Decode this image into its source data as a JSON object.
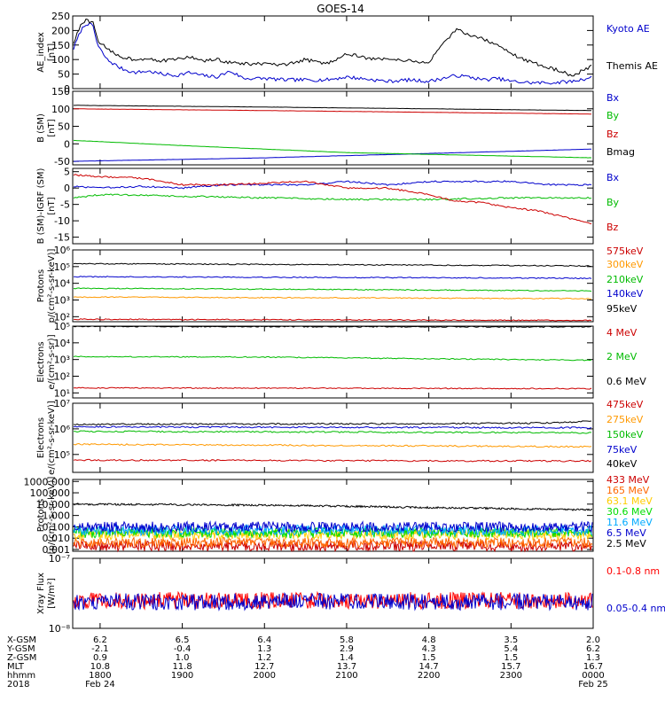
{
  "title": "GOES-14",
  "chart_data": {
    "type": "line",
    "title": "GOES-14",
    "x_range": [
      "2018-02-24 17:40",
      "2018-02-25 00:00"
    ],
    "panels": [
      {
        "id": "ae",
        "ylabel": "AE_index\n[nT]",
        "yscale": "linear",
        "ylim": [
          0,
          250
        ],
        "ticks": [
          0,
          50,
          100,
          150,
          200,
          250
        ],
        "tick_labels": [
          "0",
          "50",
          "100",
          "150",
          "200",
          "250"
        ],
        "series": [
          {
            "name": "Kyoto AE",
            "color": "#0000cc",
            "t": [
              "17:40",
              "17:46",
              "17:50",
              "17:55",
              "17:58",
              "18:05",
              "18:15",
              "18:25",
              "18:35",
              "18:45",
              "18:55",
              "19:05",
              "19:15",
              "19:25",
              "19:35",
              "19:45",
              "20:00",
              "20:15",
              "20:30",
              "20:45",
              "21:00",
              "21:10",
              "21:20",
              "21:30",
              "21:45",
              "22:00",
              "22:10",
              "22:20",
              "22:30",
              "22:40",
              "22:50",
              "23:00",
              "23:15",
              "23:30",
              "23:45",
              "00:00"
            ],
            "v": [
              130,
              200,
              225,
              215,
              150,
              100,
              70,
              55,
              60,
              50,
              45,
              55,
              45,
              40,
              60,
              35,
              35,
              30,
              30,
              30,
              40,
              35,
              30,
              25,
              30,
              25,
              35,
              45,
              40,
              30,
              35,
              25,
              20,
              20,
              25,
              40
            ]
          },
          {
            "name": "Themis AE",
            "color": "#000000",
            "t": [
              "17:40",
              "17:46",
              "17:50",
              "17:55",
              "17:58",
              "18:05",
              "18:15",
              "18:25",
              "18:35",
              "18:45",
              "18:55",
              "19:05",
              "19:15",
              "19:25",
              "19:35",
              "19:45",
              "20:00",
              "20:15",
              "20:30",
              "20:45",
              "21:00",
              "21:10",
              "21:20",
              "21:30",
              "21:45",
              "22:00",
              "22:10",
              "22:15",
              "22:20",
              "22:30",
              "22:40",
              "22:50",
              "23:00",
              "23:15",
              "23:30",
              "23:45",
              "00:00"
            ],
            "v": [
              150,
              220,
              235,
              225,
              170,
              135,
              110,
              100,
              105,
              95,
              100,
              110,
              95,
              100,
              90,
              85,
              85,
              80,
              100,
              85,
              120,
              110,
              100,
              105,
              95,
              90,
              150,
              175,
              205,
              185,
              170,
              150,
              120,
              90,
              70,
              45,
              80
            ]
          }
        ]
      },
      {
        "id": "bsm",
        "ylabel": "B (SM)\n[nT]",
        "yscale": "linear",
        "ylim": [
          -60,
          150
        ],
        "ticks": [
          -50,
          0,
          50,
          100,
          150
        ],
        "tick_labels": [
          "-50",
          "0",
          "50",
          "100",
          "150"
        ],
        "series": [
          {
            "name": "Bx",
            "color": "#0000cc",
            "t": [
              "17:40",
              "20:00",
              "00:00"
            ],
            "v": [
              -50,
              -40,
              -15
            ]
          },
          {
            "name": "By",
            "color": "#00bb00",
            "t": [
              "17:40",
              "19:00",
              "21:00",
              "23:00",
              "00:00"
            ],
            "v": [
              10,
              -5,
              -25,
              -35,
              -40
            ]
          },
          {
            "name": "Bz",
            "color": "#cc0000",
            "t": [
              "17:40",
              "20:00",
              "22:00",
              "00:00"
            ],
            "v": [
              100,
              95,
              90,
              85
            ]
          },
          {
            "name": "Bmag",
            "color": "#000000",
            "t": [
              "17:40",
              "20:00",
              "22:00",
              "00:00"
            ],
            "v": [
              110,
              105,
              100,
              95
            ]
          }
        ]
      },
      {
        "id": "bigrf",
        "ylabel": "B (SM)-IGRF (SM)\n[nT]",
        "yscale": "linear",
        "ylim": [
          -17,
          6
        ],
        "ticks": [
          5,
          0,
          -5,
          -10,
          -15
        ],
        "tick_labels": [
          "5",
          "0",
          "-5",
          "-10",
          "-15"
        ],
        "series": [
          {
            "name": "Bx",
            "color": "#0000cc",
            "t": [
              "17:40",
              "18:00",
              "18:30",
              "19:00",
              "19:30",
              "20:00",
              "20:30",
              "21:00",
              "21:30",
              "22:00",
              "22:30",
              "23:00",
              "23:30",
              "00:00"
            ],
            "v": [
              0.5,
              0,
              0.5,
              0,
              1,
              1,
              1,
              2,
              1,
              2,
              2,
              2,
              1,
              1
            ]
          },
          {
            "name": "By",
            "color": "#00bb00",
            "t": [
              "17:40",
              "18:00",
              "19:00",
              "20:00",
              "21:00",
              "22:00",
              "23:00",
              "00:00"
            ],
            "v": [
              -3,
              -2,
              -2.5,
              -3,
              -3.5,
              -3.5,
              -3,
              -3
            ]
          },
          {
            "name": "Bz",
            "color": "#cc0000",
            "t": [
              "17:40",
              "18:00",
              "18:30",
              "19:00",
              "19:30",
              "20:00",
              "20:30",
              "21:00",
              "21:30",
              "22:00",
              "22:20",
              "22:40",
              "23:00",
              "23:20",
              "23:40",
              "00:00"
            ],
            "v": [
              4,
              3.5,
              3,
              1,
              1,
              1.5,
              2,
              0,
              0,
              -2,
              -4,
              -4.5,
              -6,
              -7,
              -9,
              -11
            ]
          }
        ]
      },
      {
        "id": "protons_hi",
        "ylabel": "Protons\np/(cm²-s-sr-keV)]",
        "yscale": "log",
        "ylim": [
          50,
          1000000
        ],
        "ticks": [
          100,
          1000,
          10000,
          100000,
          1000000
        ],
        "tick_labels": [
          "10²",
          "10³",
          "10⁴",
          "10⁵",
          "10⁶"
        ],
        "series": [
          {
            "name": "575keV",
            "color": "#cc0000",
            "t": [
              "17:40",
              "00:00"
            ],
            "v": [
              70,
              60
            ]
          },
          {
            "name": "300keV",
            "color": "#ff9900",
            "t": [
              "17:40",
              "00:00"
            ],
            "v": [
              1500,
              1200
            ]
          },
          {
            "name": "210keV",
            "color": "#00bb00",
            "t": [
              "17:40",
              "00:00"
            ],
            "v": [
              5000,
              3500
            ]
          },
          {
            "name": "140keV",
            "color": "#0000cc",
            "t": [
              "17:40",
              "00:00"
            ],
            "v": [
              25000,
              20000
            ]
          },
          {
            "name": "95keV",
            "color": "#000000",
            "t": [
              "17:40",
              "00:00"
            ],
            "v": [
              150000,
              110000
            ]
          }
        ]
      },
      {
        "id": "electrons_mev",
        "ylabel": "Electrons\ne/(cm²-s-sr)]",
        "yscale": "log",
        "ylim": [
          5,
          100000
        ],
        "ticks": [
          10,
          100,
          1000,
          10000,
          100000
        ],
        "tick_labels": [
          "10¹",
          "10²",
          "10³",
          "10⁴",
          "10⁵"
        ],
        "series": [
          {
            "name": "4 MeV",
            "color": "#cc0000",
            "t": [
              "17:40",
              "00:00"
            ],
            "v": [
              20,
              18
            ]
          },
          {
            "name": "2 MeV",
            "color": "#00bb00",
            "t": [
              "17:40",
              "20:00",
              "22:00",
              "00:00"
            ],
            "v": [
              1500,
              1400,
              1100,
              900
            ]
          },
          {
            "name": "0.6 MeV",
            "color": "#000000",
            "t": [
              "17:40",
              "00:00"
            ],
            "v": [
              95000,
              90000
            ]
          }
        ]
      },
      {
        "id": "electrons_kev",
        "ylabel": "Electrons\ne/(cm²-s-sr-keV)]",
        "yscale": "log",
        "ylim": [
          20000,
          10000000
        ],
        "ticks": [
          100000,
          1000000,
          10000000
        ],
        "tick_labels": [
          "10⁵",
          "10⁶",
          "10⁷"
        ],
        "series": [
          {
            "name": "475keV",
            "color": "#cc0000",
            "t": [
              "17:40",
              "00:00"
            ],
            "v": [
              60000,
              55000
            ]
          },
          {
            "name": "275keV",
            "color": "#ff9900",
            "t": [
              "17:40",
              "00:00"
            ],
            "v": [
              250000,
              200000
            ]
          },
          {
            "name": "150keV",
            "color": "#00bb00",
            "t": [
              "17:40",
              "00:00"
            ],
            "v": [
              800000,
              700000
            ]
          },
          {
            "name": "75keV",
            "color": "#0000cc",
            "t": [
              "17:40",
              "00:00"
            ],
            "v": [
              1200000,
              1100000
            ]
          },
          {
            "name": "40keV",
            "color": "#000000",
            "t": [
              "17:40",
              "22:00",
              "23:30",
              "00:00"
            ],
            "v": [
              1500000,
              1600000,
              1700000,
              2000000
            ]
          }
        ]
      },
      {
        "id": "protons_mev",
        "ylabel": "Protons\n[p/(cm²-s-sr-keV)]",
        "yscale": "log",
        "ylim": [
          0.0007,
          1500
        ],
        "ticks": [
          0.001,
          0.01,
          0.1,
          1,
          10,
          100,
          1000
        ],
        "tick_labels": [
          "0.001",
          "0.010",
          "0.100",
          "1.000",
          "10.000",
          "100.000",
          "1000.000"
        ],
        "series": [
          {
            "name": "433 MeV",
            "color": "#cc0000",
            "t": [
              "17:40",
              "00:00"
            ],
            "v": [
              0.002,
              0.002
            ]
          },
          {
            "name": "165 MeV",
            "color": "#ff6600",
            "t": [
              "17:40",
              "00:00"
            ],
            "v": [
              0.004,
              0.004
            ]
          },
          {
            "name": "63.1 MeV",
            "color": "#ffcc00",
            "t": [
              "17:40",
              "00:00"
            ],
            "v": [
              0.02,
              0.02
            ]
          },
          {
            "name": "30.6 MeV",
            "color": "#00dd00",
            "t": [
              "17:40",
              "00:00"
            ],
            "v": [
              0.03,
              0.03
            ]
          },
          {
            "name": "11.6 MeV",
            "color": "#00aaff",
            "t": [
              "17:40",
              "00:00"
            ],
            "v": [
              0.05,
              0.05
            ]
          },
          {
            "name": "6.5 MeV",
            "color": "#0000cc",
            "t": [
              "17:40",
              "00:00"
            ],
            "v": [
              0.1,
              0.1
            ]
          },
          {
            "name": "2.5 MeV",
            "color": "#000000",
            "t": [
              "17:40",
              "20:00",
              "22:00",
              "00:00"
            ],
            "v": [
              10,
              8,
              5,
              3
            ]
          }
        ]
      },
      {
        "id": "xray",
        "ylabel": "Xray Flux\n[W/m²]",
        "yscale": "log",
        "ylim": [
          1e-08,
          1e-07
        ],
        "ticks": [
          1e-08,
          1e-07
        ],
        "tick_labels": [
          "10⁻⁸",
          "10⁻⁷"
        ],
        "series": [
          {
            "name": "0.1-0.8 nm",
            "color": "#ff0000",
            "t": [
              "17:40",
              "00:00"
            ],
            "v": [
              2.5e-08,
              2.5e-08
            ]
          },
          {
            "name": "0.05-0.4 nm",
            "color": "#0000cc",
            "t": [
              "17:40",
              "00:00"
            ],
            "v": [
              2.4e-08,
              2.4e-08
            ]
          }
        ]
      }
    ],
    "ephemeris": {
      "row_labels": [
        "X-GSM",
        "Y-GSM",
        "Z-GSM",
        "MLT",
        "hhmm",
        "2018"
      ],
      "columns": [
        {
          "t": "18:00",
          "values": [
            "6.2",
            "-2.1",
            "0.9",
            "10.8",
            "1800",
            "Feb 24"
          ]
        },
        {
          "t": "19:00",
          "values": [
            "6.5",
            "-0.4",
            "1.0",
            "11.8",
            "1900",
            ""
          ]
        },
        {
          "t": "20:00",
          "values": [
            "6.4",
            "1.3",
            "1.2",
            "12.7",
            "2000",
            ""
          ]
        },
        {
          "t": "21:00",
          "values": [
            "5.8",
            "2.9",
            "1.4",
            "13.7",
            "2100",
            ""
          ]
        },
        {
          "t": "22:00",
          "values": [
            "4.8",
            "4.3",
            "1.5",
            "14.7",
            "2200",
            ""
          ]
        },
        {
          "t": "23:00",
          "values": [
            "3.5",
            "5.4",
            "1.5",
            "15.7",
            "2300",
            ""
          ]
        },
        {
          "t": "00:00",
          "values": [
            "2.0",
            "6.2",
            "1.3",
            "16.7",
            "0000",
            "Feb 25"
          ]
        }
      ]
    }
  }
}
